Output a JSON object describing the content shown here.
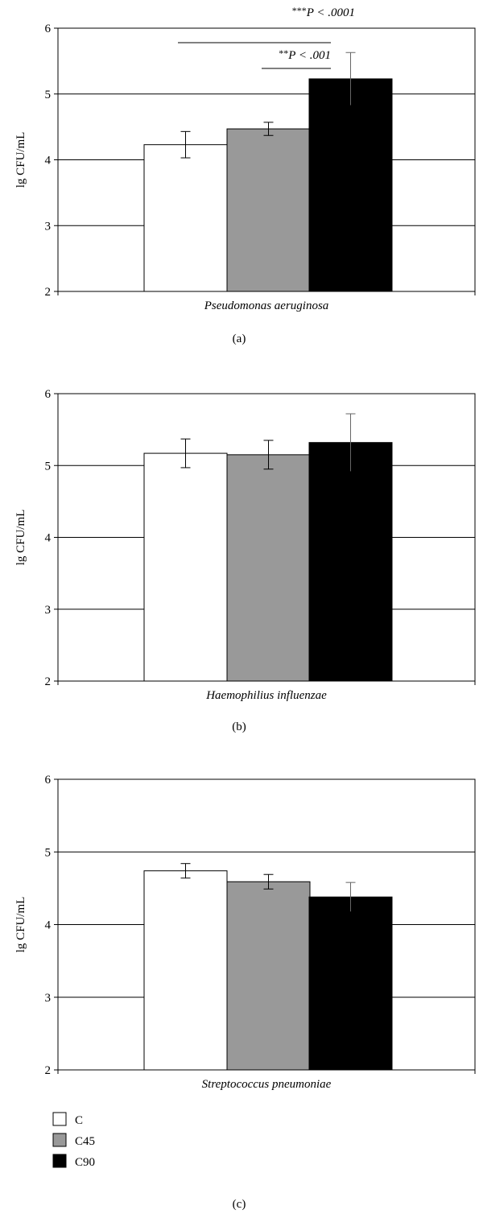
{
  "legend": {
    "items": [
      {
        "label": "C",
        "color": "#ffffff"
      },
      {
        "label": "C45",
        "color": "#999999"
      },
      {
        "label": "C90",
        "color": "#000000"
      }
    ]
  },
  "chart_data": [
    {
      "type": "bar",
      "panel_label": "(a)",
      "xlabel": "Pseudomonas aeruginosa",
      "ylabel": "lg CFU/mL",
      "ylim": [
        2,
        6
      ],
      "yticks": [
        "2",
        "3",
        "4",
        "5",
        "6"
      ],
      "grid": true,
      "categories": [
        "Pseudomonas aeruginosa"
      ],
      "series": [
        {
          "name": "C",
          "values": [
            4.23
          ],
          "error": [
            0.2
          ]
        },
        {
          "name": "C45",
          "values": [
            4.47
          ],
          "error": [
            0.1
          ]
        },
        {
          "name": "C90",
          "values": [
            5.23
          ],
          "error": [
            0.4
          ]
        }
      ],
      "annotations": [
        {
          "text_stars": "***",
          "text_p": "P < .0001",
          "from": "C45",
          "to": "C90"
        },
        {
          "text_stars": "**",
          "text_p": "P < .001",
          "from": "C45",
          "to": "C90"
        }
      ]
    },
    {
      "type": "bar",
      "panel_label": "(b)",
      "xlabel": "Haemophilius influenzae",
      "ylabel": "lg CFU/mL",
      "ylim": [
        2,
        6
      ],
      "yticks": [
        "2",
        "3",
        "4",
        "5",
        "6"
      ],
      "grid": true,
      "categories": [
        "Haemophilius influenzae"
      ],
      "series": [
        {
          "name": "C",
          "values": [
            5.17
          ],
          "error": [
            0.2
          ]
        },
        {
          "name": "C45",
          "values": [
            5.15
          ],
          "error": [
            0.2
          ]
        },
        {
          "name": "C90",
          "values": [
            5.32
          ],
          "error": [
            0.4
          ]
        }
      ],
      "annotations": []
    },
    {
      "type": "bar",
      "panel_label": "(c)",
      "xlabel": "Streptococcus pneumoniae",
      "ylabel": "lg CFU/mL",
      "ylim": [
        2,
        6
      ],
      "yticks": [
        "2",
        "3",
        "4",
        "5",
        "6"
      ],
      "grid": true,
      "categories": [
        "Streptococcus pneumoniae"
      ],
      "series": [
        {
          "name": "C",
          "values": [
            4.74
          ],
          "error": [
            0.1
          ]
        },
        {
          "name": "C45",
          "values": [
            4.59
          ],
          "error": [
            0.1
          ]
        },
        {
          "name": "C90",
          "values": [
            4.38
          ],
          "error": [
            0.2
          ]
        }
      ],
      "annotations": []
    }
  ]
}
